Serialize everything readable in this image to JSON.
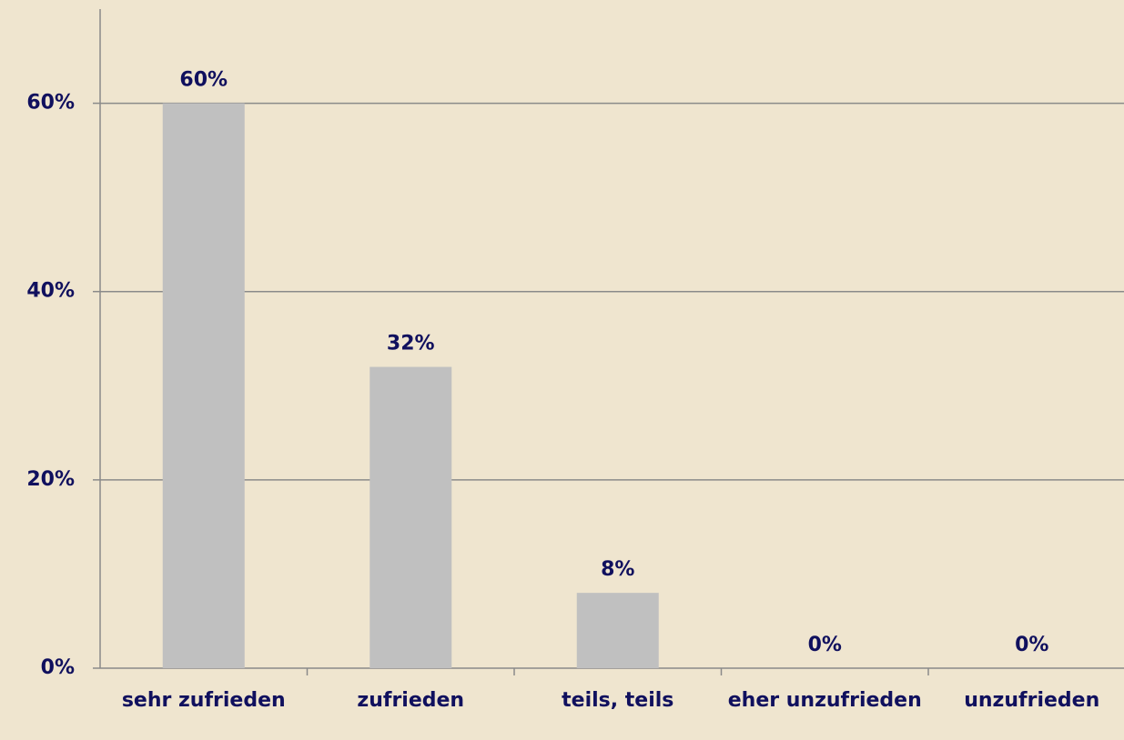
{
  "chart_data": {
    "type": "bar",
    "categories": [
      "sehr zufrieden",
      "zufrieden",
      "teils, teils",
      "eher unzufrieden",
      "unzufrieden"
    ],
    "values": [
      60,
      32,
      8,
      0,
      0
    ],
    "value_labels": [
      "60%",
      "32%",
      "8%",
      "0%",
      "0%"
    ],
    "color": "#c0c0c0",
    "ylim": [
      0,
      70
    ],
    "yticks": [
      {
        "value": 0,
        "label": "0%"
      },
      {
        "value": 20,
        "label": "20%"
      },
      {
        "value": 40,
        "label": "40%"
      },
      {
        "value": 60,
        "label": "60%"
      }
    ],
    "grid": true
  }
}
